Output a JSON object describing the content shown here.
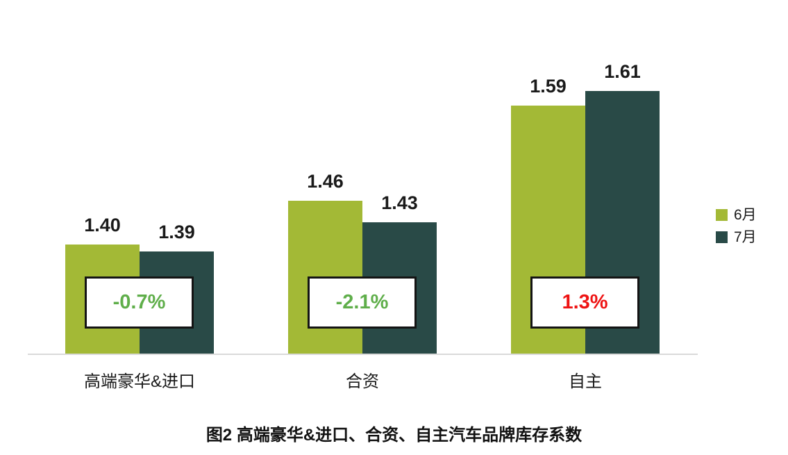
{
  "chart_data": {
    "type": "bar",
    "title": "图2 高端豪华&进口、合资、自主汽车品牌库存系数",
    "categories": [
      "高端豪华&进口",
      "合资",
      "自主"
    ],
    "series": [
      {
        "name": "6月",
        "color": "#a3b936",
        "values": [
          1.4,
          1.46,
          1.59
        ],
        "labels": [
          "1.40",
          "1.46",
          "1.59"
        ]
      },
      {
        "name": "7月",
        "color": "#294a47",
        "values": [
          1.39,
          1.43,
          1.61
        ],
        "labels": [
          "1.39",
          "1.43",
          "1.61"
        ]
      }
    ],
    "changes": [
      {
        "text": "-0.7%",
        "color": "#5fae4a"
      },
      {
        "text": "-2.1%",
        "color": "#5fae4a"
      },
      {
        "text": "1.3%",
        "color": "#ee1313"
      }
    ],
    "legend": {
      "position": "right",
      "entries": [
        "6月",
        "7月"
      ]
    },
    "xlabel": "",
    "ylabel": "",
    "ylim": [
      1.25,
      1.66
    ],
    "grid": false,
    "axis_line_color": "#d9d9d9",
    "value_label_color": "#1a1a1a",
    "change_box_border_color": "#141414"
  }
}
